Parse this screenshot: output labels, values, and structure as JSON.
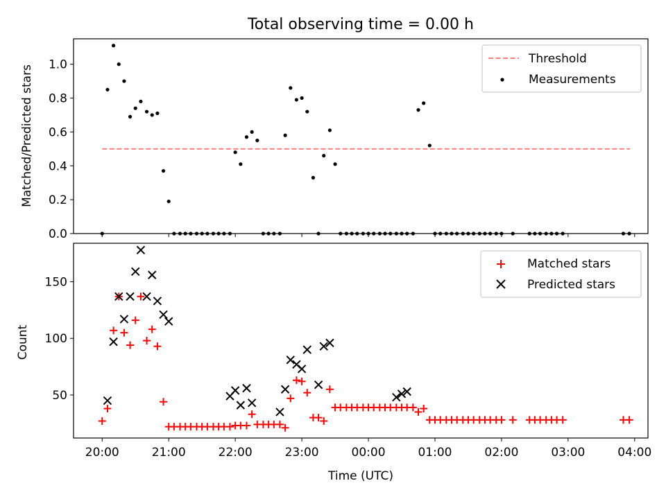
{
  "chart_data": [
    {
      "type": "scatter",
      "title": "Total observing time = 0.00 h",
      "xlabel": "",
      "ylabel": "Matched/Predicted stars",
      "xlim": [
        -0.43,
        8.2
      ],
      "ylim": [
        0,
        1.15
      ],
      "yticks": [
        0.0,
        0.2,
        0.4,
        0.6,
        0.8,
        1.0
      ],
      "ytick_labels": [
        "0.0",
        "0.2",
        "0.4",
        "0.6",
        "0.8",
        "1.0"
      ],
      "xticks": [
        0,
        1,
        2,
        3,
        4,
        5,
        6,
        7,
        8
      ],
      "xtick_labels_shown": false,
      "grid": false,
      "legend": "top-right",
      "series": [
        {
          "name": "Threshold",
          "kind": "line",
          "style": "dashed",
          "color": "#ff7f7f",
          "x": [
            0.0,
            7.93
          ],
          "y": [
            0.5,
            0.5
          ]
        },
        {
          "name": "Measurements",
          "kind": "dot",
          "color": "#000000",
          "x": [
            0.0,
            0.08,
            0.17,
            0.25,
            0.33,
            0.42,
            0.5,
            0.58,
            0.67,
            0.75,
            0.83,
            0.92,
            1.0,
            1.08,
            1.17,
            1.25,
            1.33,
            1.42,
            1.5,
            1.58,
            1.67,
            1.75,
            1.83,
            1.92,
            2.0,
            2.08,
            2.17,
            2.25,
            2.33,
            2.42,
            2.5,
            2.58,
            2.67,
            2.75,
            2.83,
            2.92,
            3.0,
            3.08,
            3.17,
            3.25,
            3.33,
            3.42,
            3.5,
            3.58,
            3.67,
            3.75,
            3.83,
            3.92,
            4.0,
            4.08,
            4.17,
            4.25,
            4.33,
            4.42,
            4.5,
            4.58,
            4.67,
            4.75,
            4.83,
            4.92,
            5.0,
            5.08,
            5.17,
            5.25,
            5.33,
            5.42,
            5.5,
            5.58,
            5.67,
            5.75,
            5.83,
            5.92,
            6.0,
            6.17,
            6.42,
            6.5,
            6.58,
            6.67,
            6.75,
            6.83,
            6.92,
            7.83,
            7.92
          ],
          "y": [
            0.0,
            0.85,
            1.11,
            1.0,
            0.9,
            0.69,
            0.74,
            0.78,
            0.72,
            0.7,
            0.71,
            0.37,
            0.19,
            0.0,
            0.0,
            0.0,
            0.0,
            0.0,
            0.0,
            0.0,
            0.0,
            0.0,
            0.0,
            0.0,
            0.48,
            0.41,
            0.57,
            0.6,
            0.55,
            0.0,
            0.0,
            0.0,
            0.0,
            0.58,
            0.86,
            0.79,
            0.8,
            0.72,
            0.33,
            0.0,
            0.46,
            0.61,
            0.41,
            0.0,
            0.0,
            0.0,
            0.0,
            0.0,
            0.0,
            0.0,
            0.0,
            0.0,
            0.0,
            0.0,
            0.0,
            0.0,
            0.0,
            0.73,
            0.77,
            0.52,
            0.0,
            0.0,
            0.0,
            0.0,
            0.0,
            0.0,
            0.0,
            0.0,
            0.0,
            0.0,
            0.0,
            0.0,
            0.0,
            0.0,
            0.0,
            0.0,
            0.0,
            0.0,
            0.0,
            0.0,
            0.0,
            0.0,
            0.0
          ]
        }
      ]
    },
    {
      "type": "scatter",
      "title": "",
      "xlabel": "Time (UTC)",
      "ylabel": "Count",
      "xlim": [
        -0.43,
        8.2
      ],
      "ylim": [
        12,
        184
      ],
      "yticks": [
        50,
        100,
        150
      ],
      "ytick_labels": [
        "50",
        "100",
        "150"
      ],
      "xticks": [
        0,
        1,
        2,
        3,
        4,
        5,
        6,
        7,
        8
      ],
      "xtick_labels": [
        "20:00",
        "21:00",
        "22:00",
        "23:00",
        "00:00",
        "01:00",
        "02:00",
        "03:00",
        "04:00"
      ],
      "grid": false,
      "legend": "top-right",
      "series": [
        {
          "name": "Matched stars",
          "marker": "+",
          "color": "#ff0000",
          "x": [
            0.0,
            0.08,
            0.17,
            0.25,
            0.33,
            0.42,
            0.5,
            0.58,
            0.67,
            0.75,
            0.83,
            0.92,
            1.0,
            1.08,
            1.17,
            1.25,
            1.33,
            1.42,
            1.5,
            1.58,
            1.67,
            1.75,
            1.83,
            1.92,
            2.0,
            2.08,
            2.17,
            2.25,
            2.33,
            2.42,
            2.5,
            2.58,
            2.67,
            2.75,
            2.83,
            2.92,
            3.0,
            3.08,
            3.17,
            3.25,
            3.33,
            3.42,
            3.5,
            3.58,
            3.67,
            3.75,
            3.83,
            3.92,
            4.0,
            4.08,
            4.17,
            4.25,
            4.33,
            4.42,
            4.5,
            4.58,
            4.67,
            4.75,
            4.83,
            4.92,
            5.0,
            5.08,
            5.17,
            5.25,
            5.33,
            5.42,
            5.5,
            5.58,
            5.67,
            5.75,
            5.83,
            5.92,
            6.0,
            6.17,
            6.42,
            6.5,
            6.58,
            6.67,
            6.75,
            6.83,
            6.92,
            7.83,
            7.92
          ],
          "y": [
            27,
            38,
            107,
            137,
            105,
            94,
            116,
            137,
            98,
            108,
            93,
            44,
            22,
            22,
            22,
            22,
            22,
            22,
            22,
            22,
            22,
            22,
            22,
            22,
            23,
            23,
            23,
            33,
            24,
            24,
            24,
            24,
            24,
            21,
            47,
            63,
            62,
            52,
            30,
            30,
            27,
            55,
            39,
            39,
            39,
            39,
            39,
            39,
            39,
            39,
            39,
            39,
            39,
            39,
            39,
            39,
            39,
            35,
            38,
            28,
            28,
            28,
            28,
            28,
            28,
            28,
            28,
            28,
            28,
            28,
            28,
            28,
            28,
            28,
            28,
            28,
            28,
            28,
            28,
            28,
            28,
            28,
            28
          ]
        },
        {
          "name": "Predicted stars",
          "marker": "x",
          "color": "#000000",
          "x": [
            0.08,
            0.17,
            0.25,
            0.33,
            0.42,
            0.5,
            0.58,
            0.67,
            0.75,
            0.83,
            0.92,
            1.0,
            1.92,
            2.0,
            2.08,
            2.17,
            2.25,
            2.67,
            2.75,
            2.83,
            2.92,
            3.0,
            3.08,
            3.25,
            3.33,
            3.42,
            4.42,
            4.5,
            4.58
          ],
          "y": [
            45,
            97,
            137,
            117,
            137,
            159,
            178,
            137,
            156,
            133,
            121,
            115,
            49,
            54,
            41,
            56,
            43,
            35,
            55,
            81,
            77,
            73,
            90,
            59,
            93,
            96,
            48,
            51,
            53
          ]
        }
      ]
    }
  ]
}
